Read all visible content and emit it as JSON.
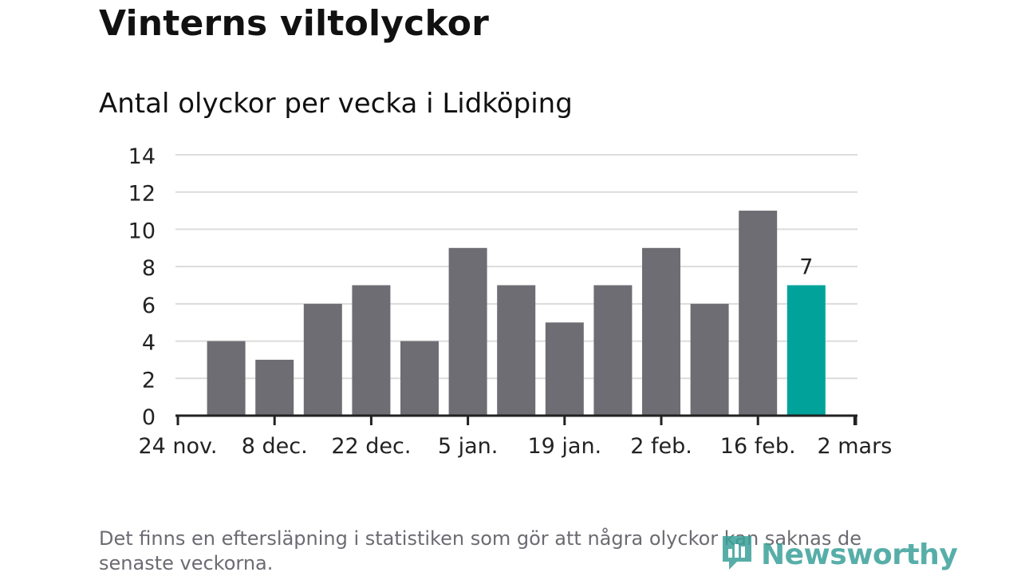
{
  "title": "Vinterns viltolyckor",
  "subtitle": "Antal olyckor per vecka i Lidköping",
  "footnote": "Det finns en eftersläpning i statistiken som gör att några olyckor kan saknas de senaste veckorna.",
  "brand": {
    "name": "Newsworthy",
    "icon": "newsworthy-logo-icon"
  },
  "colors": {
    "bar": "#6e6d73",
    "highlight": "#00a29a",
    "grid": "#dcdcdc",
    "axis": "#222222"
  },
  "chart_data": {
    "type": "bar",
    "title": "Antal olyckor per vecka i Lidköping",
    "xlabel": "",
    "ylabel": "",
    "ylim": [
      0,
      14
    ],
    "yticks": [
      "0",
      "2",
      "4",
      "6",
      "8",
      "10",
      "12",
      "14"
    ],
    "x_tick_labels": [
      "24 nov.",
      "8 dec.",
      "22 dec.",
      "5 jan.",
      "19 jan.",
      "2 feb.",
      "16 feb.",
      "2 mars"
    ],
    "values": [
      4,
      3,
      6,
      7,
      4,
      9,
      7,
      5,
      7,
      9,
      6,
      11,
      7
    ],
    "highlight_index": 12,
    "highlight_label": "7",
    "grid": true
  }
}
